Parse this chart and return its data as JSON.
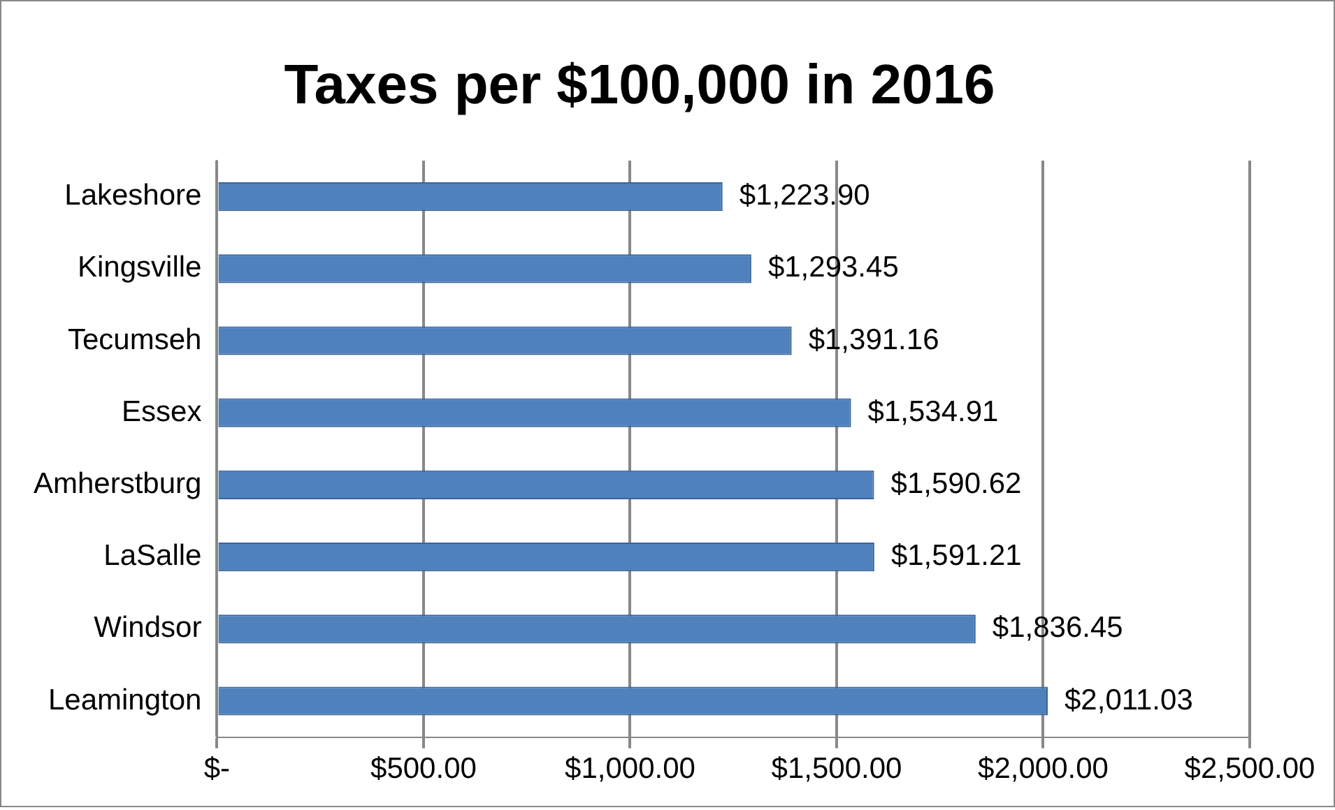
{
  "chart_data": {
    "type": "bar",
    "orientation": "horizontal",
    "title": "Taxes per $100,000 in 2016",
    "categories": [
      "Lakeshore",
      "Kingsville",
      "Tecumseh",
      "Essex",
      "Amherstburg",
      "LaSalle",
      "Windsor",
      "Leamington"
    ],
    "values": [
      1223.9,
      1293.45,
      1391.16,
      1534.91,
      1590.62,
      1591.21,
      1836.45,
      2011.03
    ],
    "value_labels": [
      "$1,223.90",
      "$1,293.45",
      "$1,391.16",
      "$1,534.91",
      "$1,590.62",
      "$1,591.21",
      "$1,836.45",
      "$2,011.03"
    ],
    "color": "#4f81bd",
    "xlim": [
      0,
      2500
    ],
    "xticks": [
      {
        "value": 0,
        "label": "$-"
      },
      {
        "value": 500,
        "label": "$500.00"
      },
      {
        "value": 1000,
        "label": "$1,000.00"
      },
      {
        "value": 1500,
        "label": "$1,500.00"
      },
      {
        "value": 2000,
        "label": "$2,000.00"
      },
      {
        "value": 2500,
        "label": "$2,500.00"
      }
    ],
    "grid": "x",
    "legend": false
  }
}
